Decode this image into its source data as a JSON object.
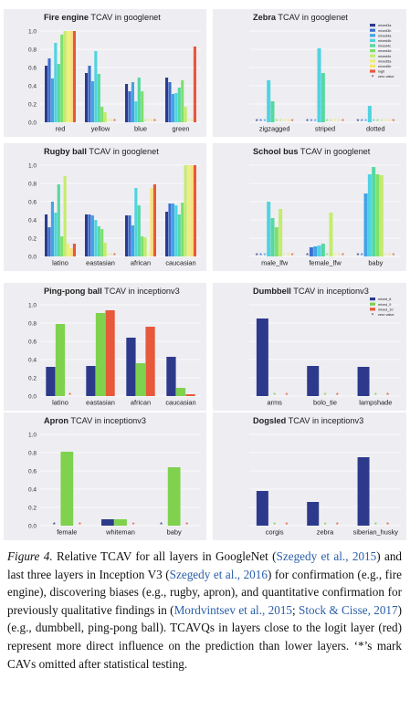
{
  "caption": {
    "label": "Figure 4.",
    "segments": [
      {
        "t": "Relative TCAV for all layers in GoogleNet (",
        "ref": false
      },
      {
        "t": "Szegedy et al., 2015",
        "ref": true
      },
      {
        "t": ") and last three layers in Inception V3  (",
        "ref": false
      },
      {
        "t": "Szegedy et al., 2016",
        "ref": true
      },
      {
        "t": ") for confirmation (e.g., fire engine), discovering biases (e.g., rugby, apron), and quantitative confirmation for previously qualitative findings in  (",
        "ref": false
      },
      {
        "t": "Mordvintsev et al., 2015",
        "ref": true
      },
      {
        "t": "; ",
        "ref": false
      },
      {
        "t": "Stock & Cisse, 2017",
        "ref": true
      },
      {
        "t": ") (e.g., dumbbell, ping-pong ball). TCAVQs in layers close to the logit layer (red) represent more direct influence on the prediction than lower layers. ‘*’s mark CAVs omitted after statistical testing.",
        "ref": false
      }
    ]
  },
  "chart_data": [
    {
      "type": "bar",
      "title_bold": "Fire engine",
      "title_rest": "TCAV in googlenet",
      "categories": [
        "red",
        "yellow",
        "blue",
        "green"
      ],
      "series_names": [
        "mixed3a",
        "mixed3b",
        "mixed4a",
        "mixed4b",
        "mixed4c",
        "mixed4d",
        "mixed4e",
        "mixed5a",
        "mixed5b",
        "logit"
      ],
      "values": [
        [
          0.62,
          0.7,
          0.48,
          0.87,
          0.64,
          0.96,
          1.0,
          1.0,
          1.0,
          1.0
        ],
        [
          0.54,
          0.62,
          0.45,
          0.78,
          0.53,
          0.17,
          0.11,
          0.0,
          0.0,
          0.0
        ],
        [
          0.42,
          0.34,
          0.44,
          0.23,
          0.49,
          0.34,
          0.0,
          0.0,
          0.0,
          0.0
        ],
        [
          0.49,
          0.44,
          0.31,
          0.32,
          0.38,
          0.46,
          0.17,
          0.0,
          0.0,
          0.83
        ]
      ],
      "stars": [
        [
          0,
          0,
          0,
          0,
          0,
          0,
          0,
          0,
          0,
          0
        ],
        [
          0,
          0,
          0,
          0,
          0,
          0,
          0,
          1,
          1,
          1
        ],
        [
          0,
          0,
          0,
          0,
          0,
          0,
          1,
          1,
          1,
          1
        ],
        [
          0,
          0,
          0,
          0,
          0,
          0,
          0,
          1,
          1,
          0
        ]
      ],
      "yticks": [
        "0.0",
        "0.2",
        "0.4",
        "0.6",
        "0.8",
        "1.0"
      ],
      "ylim": [
        0,
        1
      ],
      "legend": "none"
    },
    {
      "type": "bar",
      "title_bold": "Zebra",
      "title_rest": "TCAV in googlenet",
      "categories": [
        "zigzagged",
        "striped",
        "dotted"
      ],
      "series_names": [
        "mixed3a",
        "mixed3b",
        "mixed4a",
        "mixed4b",
        "mixed4c",
        "mixed4d",
        "mixed4e",
        "mixed5a",
        "mixed5b",
        "logit"
      ],
      "values": [
        [
          0.0,
          0.0,
          0.0,
          0.46,
          0.23,
          0.0,
          0.0,
          0.0,
          0.0,
          0.0
        ],
        [
          0.0,
          0.0,
          0.0,
          0.81,
          0.54,
          0.0,
          0.0,
          0.0,
          0.0,
          0.0
        ],
        [
          0.0,
          0.0,
          0.0,
          0.18,
          0.0,
          0.0,
          0.0,
          0.0,
          0.0,
          0.0
        ]
      ],
      "stars": [
        [
          1,
          1,
          1,
          0,
          0,
          1,
          1,
          1,
          1,
          1
        ],
        [
          1,
          1,
          1,
          0,
          0,
          1,
          1,
          1,
          1,
          1
        ],
        [
          1,
          1,
          1,
          0,
          1,
          1,
          1,
          1,
          1,
          1
        ]
      ],
      "yticks": [],
      "ylim": [
        0,
        1
      ],
      "legend": "top-right",
      "legend_items": [
        "mixed3a",
        "mixed3b",
        "mixed4a",
        "mixed4b",
        "mixed4c",
        "mixed4d",
        "mixed4e",
        "mixed5a",
        "mixed5b",
        "logit",
        "zero value"
      ]
    },
    {
      "type": "bar",
      "title_bold": "Rugby ball",
      "title_rest": "TCAV in googlenet",
      "categories": [
        "latino",
        "eastasian",
        "african",
        "caucasian"
      ],
      "series_names": [
        "mixed3a",
        "mixed3b",
        "mixed4a",
        "mixed4b",
        "mixed4c",
        "mixed4d",
        "mixed4e",
        "mixed5a",
        "mixed5b",
        "logit"
      ],
      "values": [
        [
          0.46,
          0.32,
          0.6,
          0.48,
          0.79,
          0.22,
          0.88,
          0.14,
          0.09,
          0.14
        ],
        [
          0.46,
          0.46,
          0.45,
          0.4,
          0.33,
          0.3,
          0.15,
          0.0,
          0.0,
          0.0
        ],
        [
          0.45,
          0.45,
          0.34,
          0.75,
          0.56,
          0.22,
          0.21,
          0.0,
          0.75,
          0.79
        ],
        [
          0.49,
          0.58,
          0.58,
          0.56,
          0.46,
          0.59,
          1.0,
          1.0,
          1.0,
          1.0
        ]
      ],
      "stars": [
        [
          0,
          0,
          0,
          0,
          0,
          0,
          0,
          0,
          0,
          0
        ],
        [
          0,
          0,
          0,
          0,
          0,
          0,
          0,
          1,
          1,
          1
        ],
        [
          0,
          0,
          0,
          0,
          0,
          0,
          0,
          1,
          0,
          0
        ],
        [
          0,
          0,
          0,
          0,
          0,
          0,
          0,
          0,
          0,
          0
        ]
      ],
      "yticks": [
        "0.0",
        "0.2",
        "0.4",
        "0.6",
        "0.8",
        "1.0"
      ],
      "ylim": [
        0,
        1
      ],
      "legend": "none"
    },
    {
      "type": "bar",
      "title_bold": "School bus",
      "title_rest": "TCAV in googlenet",
      "categories": [
        "male_lfw",
        "female_lfw",
        "baby"
      ],
      "series_names": [
        "mixed3a",
        "mixed3b",
        "mixed4a",
        "mixed4b",
        "mixed4c",
        "mixed4d",
        "mixed4e",
        "mixed5a",
        "mixed5b",
        "logit"
      ],
      "values": [
        [
          0.0,
          0.0,
          0.0,
          0.6,
          0.42,
          0.32,
          0.52,
          0.0,
          0.0,
          0.0
        ],
        [
          0.0,
          0.1,
          0.11,
          0.12,
          0.14,
          0.0,
          0.48,
          0.0,
          0.0,
          0.0
        ],
        [
          0.0,
          0.0,
          0.69,
          0.9,
          0.98,
          0.9,
          0.89,
          0.0,
          0.0,
          0.0
        ]
      ],
      "stars": [
        [
          1,
          1,
          1,
          0,
          0,
          0,
          0,
          1,
          1,
          1
        ],
        [
          1,
          0,
          0,
          0,
          0,
          1,
          0,
          1,
          1,
          1
        ],
        [
          1,
          1,
          0,
          0,
          0,
          0,
          0,
          1,
          1,
          1
        ]
      ],
      "yticks": [],
      "ylim": [
        0,
        1
      ],
      "legend": "none"
    },
    {
      "type": "bar",
      "title_bold": "Ping-pong ball",
      "title_rest": "TCAV in inceptionv3",
      "categories": [
        "latino",
        "eastasian",
        "african",
        "caucasian"
      ],
      "series_names": [
        "mixed_8",
        "mixed_9",
        "mixed_10"
      ],
      "values": [
        [
          0.32,
          0.79,
          0.0
        ],
        [
          0.33,
          0.91,
          0.94
        ],
        [
          0.64,
          0.36,
          0.76
        ],
        [
          0.43,
          0.09,
          0.02
        ]
      ],
      "stars": [
        [
          0,
          0,
          1
        ],
        [
          0,
          0,
          0
        ],
        [
          0,
          0,
          0
        ],
        [
          0,
          0,
          0
        ]
      ],
      "yticks": [
        "0.0",
        "0.2",
        "0.4",
        "0.6",
        "0.8",
        "1.0"
      ],
      "ylim": [
        0,
        1
      ],
      "legend": "none"
    },
    {
      "type": "bar",
      "title_bold": "Dumbbell",
      "title_rest": "TCAV in inceptionv3",
      "categories": [
        "arms",
        "bolo_tie",
        "lampshade"
      ],
      "series_names": [
        "mixed_8",
        "mixed_9",
        "mixed_10"
      ],
      "values": [
        [
          0.85,
          0.0,
          0.0
        ],
        [
          0.33,
          0.0,
          0.0
        ],
        [
          0.32,
          0.0,
          0.0
        ]
      ],
      "stars": [
        [
          0,
          1,
          1
        ],
        [
          0,
          1,
          1
        ],
        [
          0,
          1,
          1
        ]
      ],
      "yticks": [],
      "ylim": [
        0,
        1
      ],
      "legend": "top-right",
      "legend_items": [
        "mixed_8",
        "mixed_9",
        "mixed_10",
        "zero value"
      ]
    },
    {
      "type": "bar",
      "title_bold": "Apron",
      "title_rest": "TCAV in inceptionv3",
      "categories": [
        "female",
        "whiteman",
        "baby"
      ],
      "series_names": [
        "mixed_8",
        "mixed_9",
        "mixed_10"
      ],
      "values": [
        [
          0.0,
          0.81,
          0.0
        ],
        [
          0.07,
          0.07,
          0.0
        ],
        [
          0.0,
          0.64,
          0.0
        ]
      ],
      "stars": [
        [
          1,
          0,
          1
        ],
        [
          0,
          0,
          1
        ],
        [
          1,
          0,
          1
        ]
      ],
      "yticks": [
        "0.0",
        "0.2",
        "0.4",
        "0.6",
        "0.8",
        "1.0"
      ],
      "ylim": [
        0,
        1
      ],
      "legend": "none"
    },
    {
      "type": "bar",
      "title_bold": "Dogsled",
      "title_rest": "TCAV in inceptionv3",
      "categories": [
        "corgis",
        "zebra",
        "siberian_husky"
      ],
      "series_names": [
        "mixed_8",
        "mixed_9",
        "mixed_10"
      ],
      "values": [
        [
          0.38,
          0.0,
          0.0
        ],
        [
          0.26,
          0.0,
          0.0
        ],
        [
          0.75,
          0.0,
          0.0
        ]
      ],
      "stars": [
        [
          0,
          1,
          1
        ],
        [
          0,
          1,
          1
        ],
        [
          0,
          1,
          1
        ]
      ],
      "yticks": [],
      "ylim": [
        0,
        1
      ],
      "legend": "none"
    }
  ]
}
